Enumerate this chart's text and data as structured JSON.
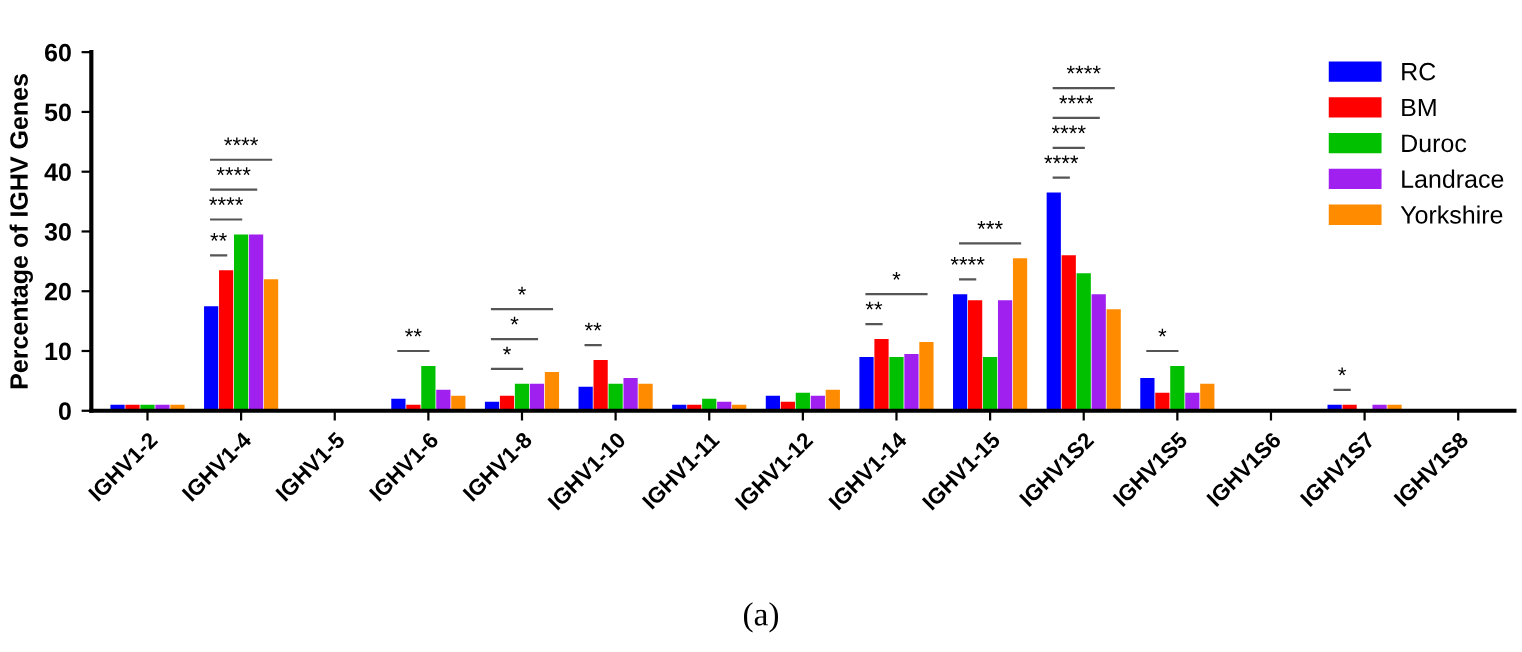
{
  "chart_data": {
    "type": "bar",
    "ylabel": "Percentage of IGHV Genes",
    "categories": [
      "IGHV1-2",
      "IGHV1-4",
      "IGHV1-5",
      "IGHV1-6",
      "IGHV1-8",
      "IGHV1-10",
      "IGHV1-11",
      "IGHV1-12",
      "IGHV1-14",
      "IGHV1-15",
      "IGHV1S2",
      "IGHV1S5",
      "IGHV1S6",
      "IGHV1S7",
      "IGHV1S8"
    ],
    "series": [
      {
        "name": "RC",
        "color": "#0000ff",
        "values": [
          1,
          17.5,
          0,
          2,
          1.5,
          4,
          1,
          2.5,
          9,
          19.5,
          36.5,
          5.5,
          0,
          1,
          0
        ]
      },
      {
        "name": "BM",
        "color": "#ff0000",
        "values": [
          1,
          23.5,
          0,
          1,
          2.5,
          8.5,
          1,
          1.5,
          12,
          18.5,
          26,
          3,
          0,
          1,
          0
        ]
      },
      {
        "name": "Duroc",
        "color": "#00c000",
        "values": [
          1,
          29.5,
          0,
          7.5,
          4.5,
          4.5,
          2,
          3,
          9,
          9,
          23,
          7.5,
          0,
          0,
          0
        ]
      },
      {
        "name": "Landrace",
        "color": "#a020f0",
        "values": [
          1,
          29.5,
          0,
          3.5,
          4.5,
          5.5,
          1.5,
          2.5,
          9.5,
          18.5,
          19.5,
          3,
          0,
          1,
          0
        ]
      },
      {
        "name": "Yorkshire",
        "color": "#ff8c00",
        "values": [
          1,
          22,
          0,
          2.5,
          6.5,
          4.5,
          1,
          3.5,
          11.5,
          25.5,
          17,
          4.5,
          0,
          1,
          0
        ]
      }
    ],
    "ylim": [
      0,
      60
    ],
    "yticks": [
      0,
      10,
      20,
      30,
      40,
      50,
      60
    ],
    "grid": false,
    "legend": "top right",
    "annotations": [
      "**",
      "****",
      "****",
      "****",
      "**",
      "*",
      "*",
      "*",
      "**",
      "**",
      "*",
      "****",
      "***",
      "****",
      "****",
      "****",
      "****",
      "*",
      "*",
      "(a)"
    ]
  }
}
